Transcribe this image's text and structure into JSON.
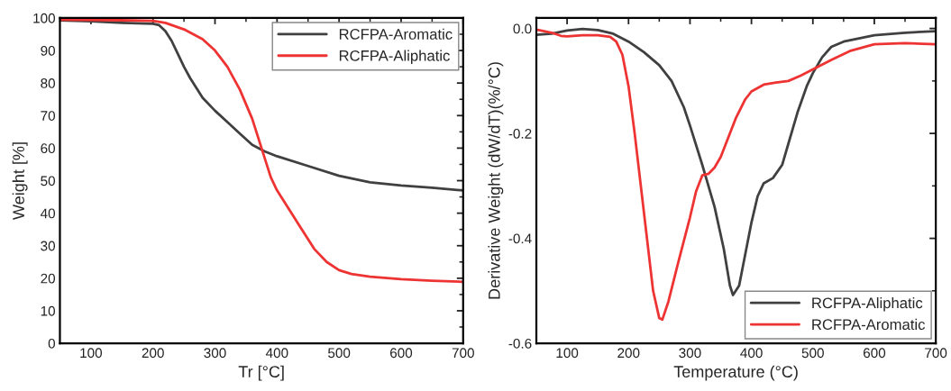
{
  "chart_data": [
    {
      "type": "line",
      "xlabel": "Tr [°C]",
      "ylabel": "Weight [%]",
      "xlim": [
        50,
        700
      ],
      "ylim": [
        0,
        100
      ],
      "xticks": [
        100,
        200,
        300,
        400,
        500,
        600,
        700
      ],
      "yticks": [
        0,
        10,
        20,
        30,
        40,
        50,
        60,
        70,
        80,
        90,
        100
      ],
      "grid": false,
      "legend": "top right",
      "series": [
        {
          "name": "RCFPA-Aromatic",
          "color": "#404040",
          "x": [
            50,
            100,
            150,
            200,
            210,
            220,
            230,
            240,
            250,
            260,
            280,
            300,
            320,
            340,
            360,
            380,
            400,
            450,
            500,
            550,
            600,
            650,
            700
          ],
          "values": [
            99.3,
            99,
            98.5,
            98.2,
            97.8,
            96,
            93,
            89,
            85,
            81.5,
            75.5,
            71.5,
            68,
            64.5,
            61,
            59,
            57.5,
            54.5,
            51.5,
            49.5,
            48.5,
            47.8,
            47
          ]
        },
        {
          "name": "RCFPA-Aliphatic",
          "color": "#ee3333",
          "x": [
            50,
            150,
            200,
            220,
            250,
            280,
            300,
            320,
            340,
            360,
            375,
            390,
            400,
            420,
            440,
            460,
            480,
            500,
            520,
            550,
            600,
            650,
            700
          ],
          "values": [
            99.5,
            99.3,
            99.1,
            98.5,
            96.5,
            93.5,
            90,
            85,
            78,
            69,
            60,
            51,
            47,
            41,
            35,
            29,
            25,
            22.5,
            21.3,
            20.5,
            19.7,
            19.2,
            18.9
          ]
        }
      ]
    },
    {
      "type": "line",
      "xlabel": "Temperature (°C)",
      "ylabel": "Derivative Weight (dW/dT)(%/°C)",
      "xlim": [
        50,
        700
      ],
      "ylim": [
        -0.6,
        0.02
      ],
      "xticks": [
        100,
        200,
        300,
        400,
        500,
        600,
        700
      ],
      "yticks": [
        -0.6,
        -0.4,
        -0.2,
        {
          "value": 0,
          "label": "0.0"
        }
      ],
      "grid": false,
      "legend": "bottom right",
      "series": [
        {
          "name": "RCFPA-Aliphatic",
          "color": "#404040",
          "x": [
            50,
            75,
            100,
            125,
            150,
            175,
            200,
            225,
            250,
            270,
            290,
            300,
            320,
            340,
            355,
            365,
            370,
            380,
            390,
            400,
            410,
            420,
            435,
            450,
            460,
            475,
            490,
            500,
            515,
            530,
            550,
            600,
            650,
            700
          ],
          "values": [
            -0.012,
            -0.01,
            -0.004,
            -0.001,
            -0.003,
            -0.01,
            -0.025,
            -0.045,
            -0.07,
            -0.1,
            -0.15,
            -0.185,
            -0.26,
            -0.34,
            -0.42,
            -0.49,
            -0.508,
            -0.49,
            -0.43,
            -0.37,
            -0.32,
            -0.295,
            -0.285,
            -0.26,
            -0.22,
            -0.16,
            -0.11,
            -0.085,
            -0.055,
            -0.035,
            -0.025,
            -0.013,
            -0.008,
            -0.005
          ]
        },
        {
          "name": "RCFPA-Aromatic",
          "color": "#ee3333",
          "x": [
            50,
            75,
            90,
            100,
            125,
            150,
            170,
            180,
            190,
            200,
            210,
            220,
            230,
            240,
            250,
            255,
            265,
            280,
            300,
            310,
            320,
            330,
            340,
            350,
            360,
            375,
            390,
            400,
            420,
            440,
            460,
            480,
            500,
            530,
            560,
            600,
            650,
            700
          ],
          "values": [
            -0.002,
            -0.008,
            -0.014,
            -0.015,
            -0.013,
            -0.013,
            -0.016,
            -0.025,
            -0.05,
            -0.11,
            -0.2,
            -0.3,
            -0.4,
            -0.5,
            -0.552,
            -0.555,
            -0.52,
            -0.45,
            -0.36,
            -0.31,
            -0.28,
            -0.277,
            -0.265,
            -0.245,
            -0.215,
            -0.17,
            -0.135,
            -0.12,
            -0.107,
            -0.103,
            -0.1,
            -0.09,
            -0.078,
            -0.06,
            -0.043,
            -0.03,
            -0.028,
            -0.03
          ]
        }
      ]
    }
  ]
}
